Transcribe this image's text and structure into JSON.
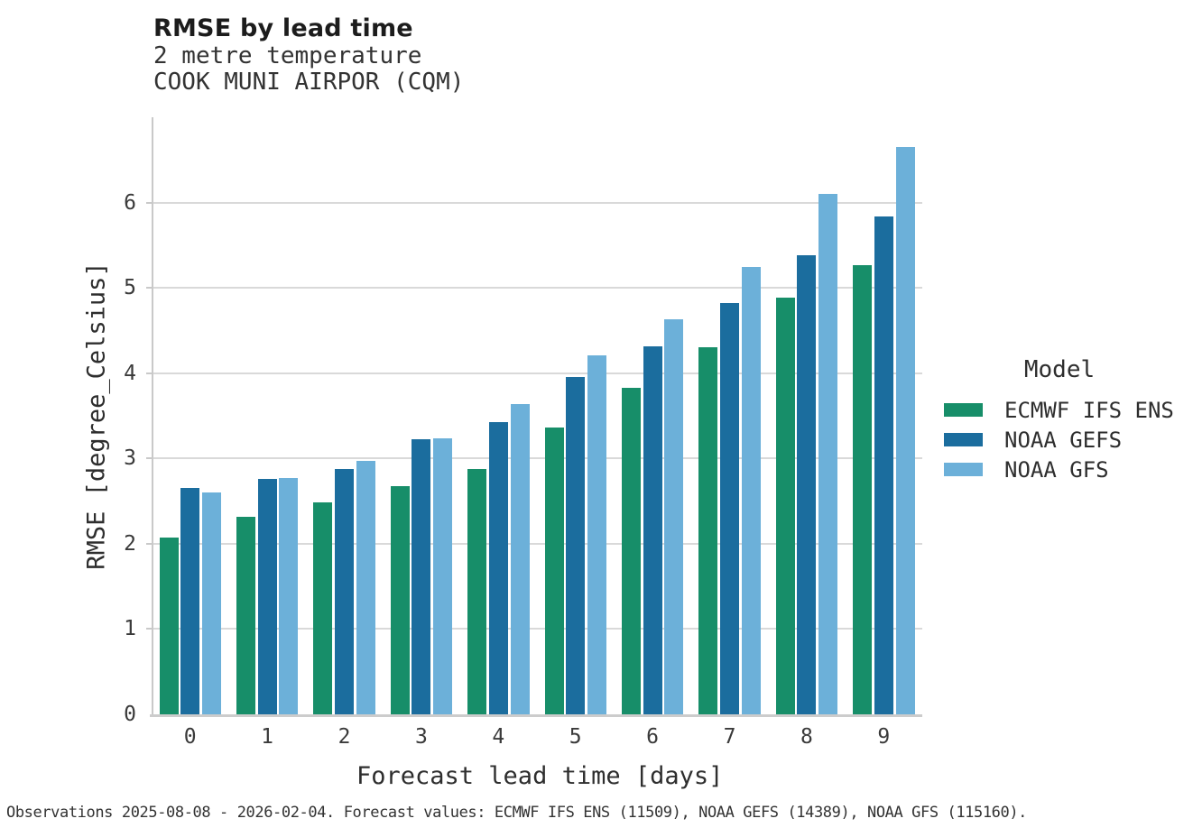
{
  "header": {
    "title": "RMSE by lead time",
    "subtitle_line1": "2 metre temperature",
    "subtitle_line2": "COOK MUNI AIRPOR (CQM)"
  },
  "chart_data": {
    "type": "bar",
    "title": "RMSE by lead time",
    "subtitle": [
      "2 metre temperature",
      "COOK MUNI AIRPOR (CQM)"
    ],
    "xlabel": "Forecast lead time [days]",
    "ylabel": "RMSE [degree_Celsius]",
    "categories": [
      "0",
      "1",
      "2",
      "3",
      "4",
      "5",
      "6",
      "7",
      "8",
      "9"
    ],
    "yticks": [
      0,
      1,
      2,
      3,
      4,
      5,
      6
    ],
    "ylim": [
      0,
      7
    ],
    "grid": "horizontal",
    "legend_position": "right",
    "legend_title": "Model",
    "series": [
      {
        "name": "ECMWF IFS ENS",
        "color": "#178e69",
        "values": [
          2.07,
          2.32,
          2.48,
          2.68,
          2.88,
          3.36,
          3.83,
          4.3,
          4.88,
          5.27
        ]
      },
      {
        "name": "NOAA GEFS",
        "color": "#1b6d9e",
        "values": [
          2.65,
          2.76,
          2.88,
          3.22,
          3.43,
          3.95,
          4.31,
          4.82,
          5.38,
          5.84
        ]
      },
      {
        "name": "NOAA GFS",
        "color": "#6cb0d9",
        "values": [
          2.6,
          2.77,
          2.97,
          3.24,
          3.64,
          4.21,
          4.63,
          5.25,
          6.1,
          6.65
        ]
      }
    ]
  },
  "footer": {
    "text": "Observations 2025-08-08 - 2026-02-04. Forecast values: ECMWF IFS ENS (11509), NOAA GEFS (14389), NOAA GFS (115160)."
  }
}
